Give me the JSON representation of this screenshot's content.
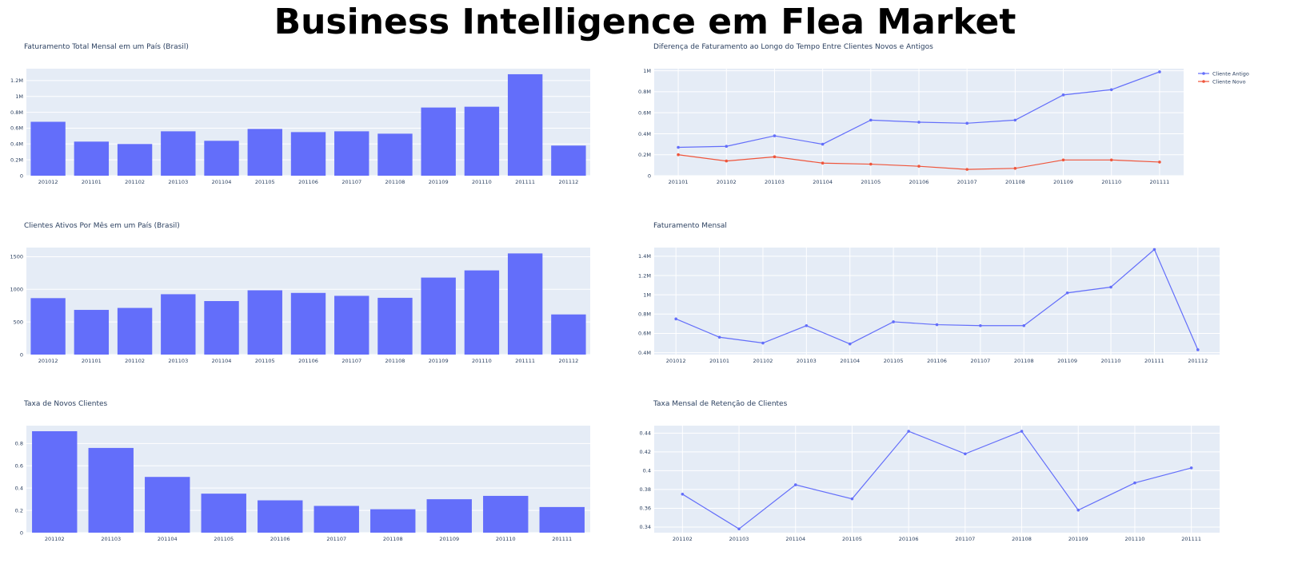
{
  "page": {
    "title": "Business Intelligence em Flea Market"
  },
  "colors": {
    "plot_bg": "#e5ecf6",
    "grid": "#ffffff",
    "bar": "#636efa",
    "series_primary": "#636efa",
    "series_secondary": "#ef553b",
    "text": "#2a3f5f"
  },
  "chart_data": [
    {
      "id": "faturamento-total-mensal",
      "type": "bar",
      "title": "Faturamento Total Mensal em um País (Brasil)",
      "categories": [
        "201012",
        "201101",
        "201102",
        "201103",
        "201104",
        "201105",
        "201106",
        "201107",
        "201108",
        "201109",
        "201110",
        "201111",
        "201112"
      ],
      "values": [
        0.68,
        0.43,
        0.4,
        0.56,
        0.44,
        0.59,
        0.55,
        0.56,
        0.53,
        0.86,
        0.87,
        1.28,
        0.38
      ],
      "ylim": [
        0,
        1.35
      ],
      "yticks": [
        0,
        0.2,
        0.4,
        0.6,
        0.8,
        1.0,
        1.2
      ],
      "ytick_labels": [
        "0",
        "0.2M",
        "0.4M",
        "0.6M",
        "0.8M",
        "1M",
        "1.2M"
      ],
      "grid": true
    },
    {
      "id": "diferenca-faturamento",
      "type": "line",
      "title": "Diferença de Faturamento ao Longo do Tempo Entre Clientes Novos e Antigos",
      "categories": [
        "201101",
        "201102",
        "201103",
        "201104",
        "201105",
        "201106",
        "201107",
        "201108",
        "201109",
        "201110",
        "201111"
      ],
      "series": [
        {
          "name": "Cliente Antigo",
          "color": "#636efa",
          "values": [
            0.27,
            0.28,
            0.38,
            0.3,
            0.53,
            0.51,
            0.5,
            0.53,
            0.77,
            0.82,
            0.99
          ]
        },
        {
          "name": "Cliente Novo",
          "color": "#ef553b",
          "values": [
            0.2,
            0.14,
            0.18,
            0.12,
            0.11,
            0.09,
            0.06,
            0.07,
            0.15,
            0.15,
            0.13
          ]
        }
      ],
      "ylim": [
        0,
        1.02
      ],
      "yticks": [
        0,
        0.2,
        0.4,
        0.6,
        0.8,
        1.0
      ],
      "ytick_labels": [
        "0",
        "0.2M",
        "0.4M",
        "0.6M",
        "0.8M",
        "1M"
      ],
      "legend": "top-right",
      "grid": true
    },
    {
      "id": "clientes-ativos",
      "type": "bar",
      "title": "Clientes Ativos Por Mês em um País (Brasil)",
      "categories": [
        "201012",
        "201101",
        "201102",
        "201103",
        "201104",
        "201105",
        "201106",
        "201107",
        "201108",
        "201109",
        "201110",
        "201111",
        "201112"
      ],
      "values": [
        865,
        685,
        715,
        925,
        820,
        985,
        945,
        900,
        870,
        1180,
        1290,
        1550,
        615
      ],
      "ylim": [
        0,
        1640
      ],
      "yticks": [
        0,
        500,
        1000,
        1500
      ],
      "ytick_labels": [
        "0",
        "500",
        "1000",
        "1500"
      ],
      "grid": true
    },
    {
      "id": "faturamento-mensal",
      "type": "line",
      "title": "Faturamento Mensal",
      "categories": [
        "201012",
        "201101",
        "201102",
        "201103",
        "201104",
        "201105",
        "201106",
        "201107",
        "201108",
        "201109",
        "201110",
        "201111",
        "201112"
      ],
      "series": [
        {
          "values": [
            0.75,
            0.56,
            0.5,
            0.68,
            0.49,
            0.72,
            0.69,
            0.68,
            0.68,
            1.02,
            1.08,
            1.47,
            0.43
          ]
        }
      ],
      "ylim": [
        0.38,
        1.49
      ],
      "yticks": [
        0.4,
        0.6,
        0.8,
        1.0,
        1.2,
        1.4
      ],
      "ytick_labels": [
        "0.4M",
        "0.6M",
        "0.8M",
        "1M",
        "1.2M",
        "1.4M"
      ],
      "grid": true
    },
    {
      "id": "taxa-novos-clientes",
      "type": "bar",
      "title": "Taxa de Novos Clientes",
      "categories": [
        "201102",
        "201103",
        "201104",
        "201105",
        "201106",
        "201107",
        "201108",
        "201109",
        "201110",
        "201111"
      ],
      "values": [
        0.91,
        0.76,
        0.5,
        0.35,
        0.29,
        0.24,
        0.21,
        0.3,
        0.33,
        0.23
      ],
      "ylim": [
        0,
        0.96
      ],
      "yticks": [
        0,
        0.2,
        0.4,
        0.6,
        0.8
      ],
      "ytick_labels": [
        "0",
        "0.2",
        "0.4",
        "0.6",
        "0.8"
      ],
      "grid": true
    },
    {
      "id": "taxa-retencao",
      "type": "line",
      "title": "Taxa Mensal de Retenção de Clientes",
      "categories": [
        "201102",
        "201103",
        "201104",
        "201105",
        "201106",
        "201107",
        "201108",
        "201109",
        "201110",
        "201111"
      ],
      "series": [
        {
          "values": [
            0.375,
            0.338,
            0.385,
            0.37,
            0.442,
            0.418,
            0.442,
            0.358,
            0.387,
            0.403
          ]
        }
      ],
      "ylim": [
        0.334,
        0.448
      ],
      "yticks": [
        0.34,
        0.36,
        0.38,
        0.4,
        0.42,
        0.44
      ],
      "ytick_labels": [
        "0.34",
        "0.36",
        "0.38",
        "0.4",
        "0.42",
        "0.44"
      ],
      "grid": true
    }
  ]
}
